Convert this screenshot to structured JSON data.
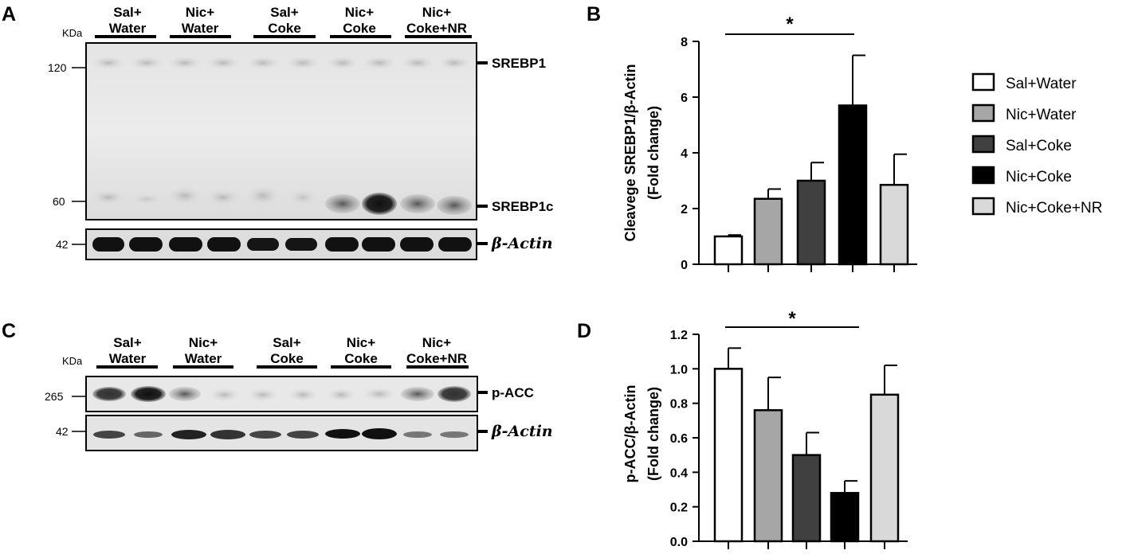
{
  "panel_labels": {
    "a": "A",
    "b": "B",
    "c": "C",
    "d": "D"
  },
  "blot_a": {
    "kda_label": "KDa",
    "groups": [
      {
        "line1": "Sal+",
        "line2": "Water"
      },
      {
        "line1": "Nic+",
        "line2": "Water"
      },
      {
        "line1": "Sal+",
        "line2": "Coke"
      },
      {
        "line1": "Nic+",
        "line2": "Coke"
      },
      {
        "line1": "Nic+",
        "line2": "Coke+NR"
      }
    ],
    "markers": {
      "m120": "120",
      "m60": "60",
      "m42": "42"
    },
    "proteins": {
      "srebp1": "SREBP1",
      "srebp1c": "SREBP1c",
      "actin": "β-Actin"
    }
  },
  "blot_c": {
    "kda_label": "KDa",
    "groups": [
      {
        "line1": "Sal+",
        "line2": "Water"
      },
      {
        "line1": "Nic+",
        "line2": "Water"
      },
      {
        "line1": "Sal+",
        "line2": "Coke"
      },
      {
        "line1": "Nic+",
        "line2": "Coke"
      },
      {
        "line1": "Nic+",
        "line2": "Coke+NR"
      }
    ],
    "markers": {
      "m265": "265",
      "m42": "42"
    },
    "proteins": {
      "pacc": "p-ACC",
      "actin": "β-Actin"
    }
  },
  "legend": {
    "items": [
      {
        "label": "Sal+Water",
        "color": "#ffffff"
      },
      {
        "label": "Nic+Water",
        "color": "#a6a6a6"
      },
      {
        "label": "Sal+Coke",
        "color": "#404040"
      },
      {
        "label": "Nic+Coke",
        "color": "#000000"
      },
      {
        "label": "Nic+Coke+NR",
        "color": "#d9d9d9"
      }
    ]
  },
  "chart_data": [
    {
      "type": "bar",
      "panel": "B",
      "categories": [
        "Sal+Water",
        "Nic+Water",
        "Sal+Coke",
        "Nic+Coke",
        "Nic+Coke+NR"
      ],
      "values": [
        1.0,
        2.35,
        3.0,
        5.7,
        2.85
      ],
      "errors": [
        0.05,
        0.35,
        0.65,
        1.8,
        1.1
      ],
      "colors": [
        "#ffffff",
        "#a6a6a6",
        "#404040",
        "#000000",
        "#d9d9d9"
      ],
      "ylabel_line1": "Cleavege SREBP1/β-Actin",
      "ylabel_line2": "(Fold change)",
      "ylim": [
        0,
        8
      ],
      "yticks": [
        "0",
        "2",
        "4",
        "6",
        "8"
      ],
      "significance": {
        "from": 0,
        "to": 3,
        "label": "*"
      }
    },
    {
      "type": "bar",
      "panel": "D",
      "categories": [
        "Sal+Water",
        "Nic+Water",
        "Sal+Coke",
        "Nic+Coke",
        "Nic+Coke+NR"
      ],
      "values": [
        1.0,
        0.76,
        0.5,
        0.28,
        0.85
      ],
      "errors": [
        0.12,
        0.19,
        0.13,
        0.07,
        0.17
      ],
      "colors": [
        "#ffffff",
        "#a6a6a6",
        "#404040",
        "#000000",
        "#d9d9d9"
      ],
      "ylabel_line1": "p-ACC/β-Actin",
      "ylabel_line2": "(Fold change)",
      "ylim": [
        0,
        1.2
      ],
      "yticks": [
        "0.0",
        "0.2",
        "0.4",
        "0.6",
        "0.8",
        "1.0",
        "1.2"
      ],
      "significance": {
        "from": 0,
        "to": 3,
        "label": "*"
      }
    }
  ]
}
